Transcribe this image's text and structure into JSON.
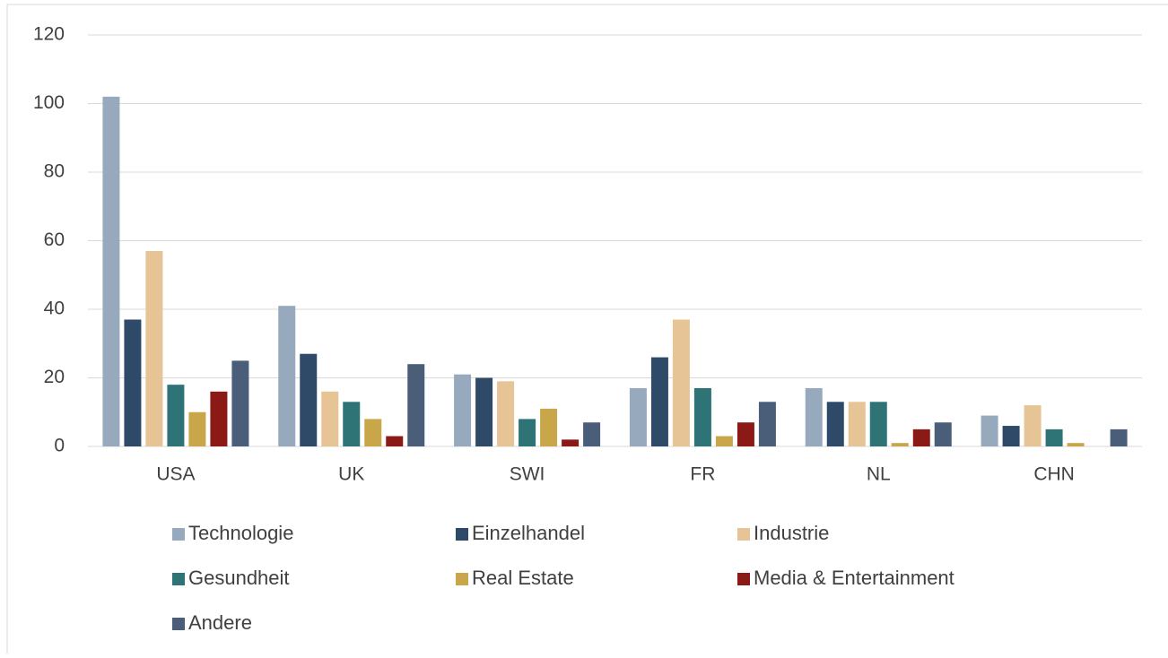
{
  "chart_data": {
    "type": "bar",
    "categories": [
      "USA",
      "UK",
      "SWI",
      "FR",
      "NL",
      "CHN"
    ],
    "series": [
      {
        "name": "Technologie",
        "color": "#97a9bd",
        "values": [
          102,
          41,
          21,
          17,
          17,
          9
        ]
      },
      {
        "name": "Einzelhandel",
        "color": "#2f4a68",
        "values": [
          37,
          27,
          20,
          26,
          13,
          6
        ]
      },
      {
        "name": "Industrie",
        "color": "#e6c495",
        "values": [
          57,
          16,
          19,
          37,
          13,
          12
        ]
      },
      {
        "name": "Gesundheit",
        "color": "#2e7477",
        "values": [
          18,
          13,
          8,
          17,
          13,
          5
        ]
      },
      {
        "name": "Real Estate",
        "color": "#c9a64a",
        "values": [
          10,
          8,
          11,
          3,
          1,
          1
        ]
      },
      {
        "name": "Media & Entertainment",
        "color": "#8b1a17",
        "values": [
          16,
          3,
          2,
          7,
          5,
          0
        ]
      },
      {
        "name": "Andere",
        "color": "#4a5e7a",
        "values": [
          25,
          24,
          7,
          13,
          7,
          5
        ]
      }
    ],
    "ylim": [
      0,
      120
    ],
    "yticks": [
      0,
      20,
      40,
      60,
      80,
      100,
      120
    ],
    "grid": true,
    "legend": "bottom"
  }
}
